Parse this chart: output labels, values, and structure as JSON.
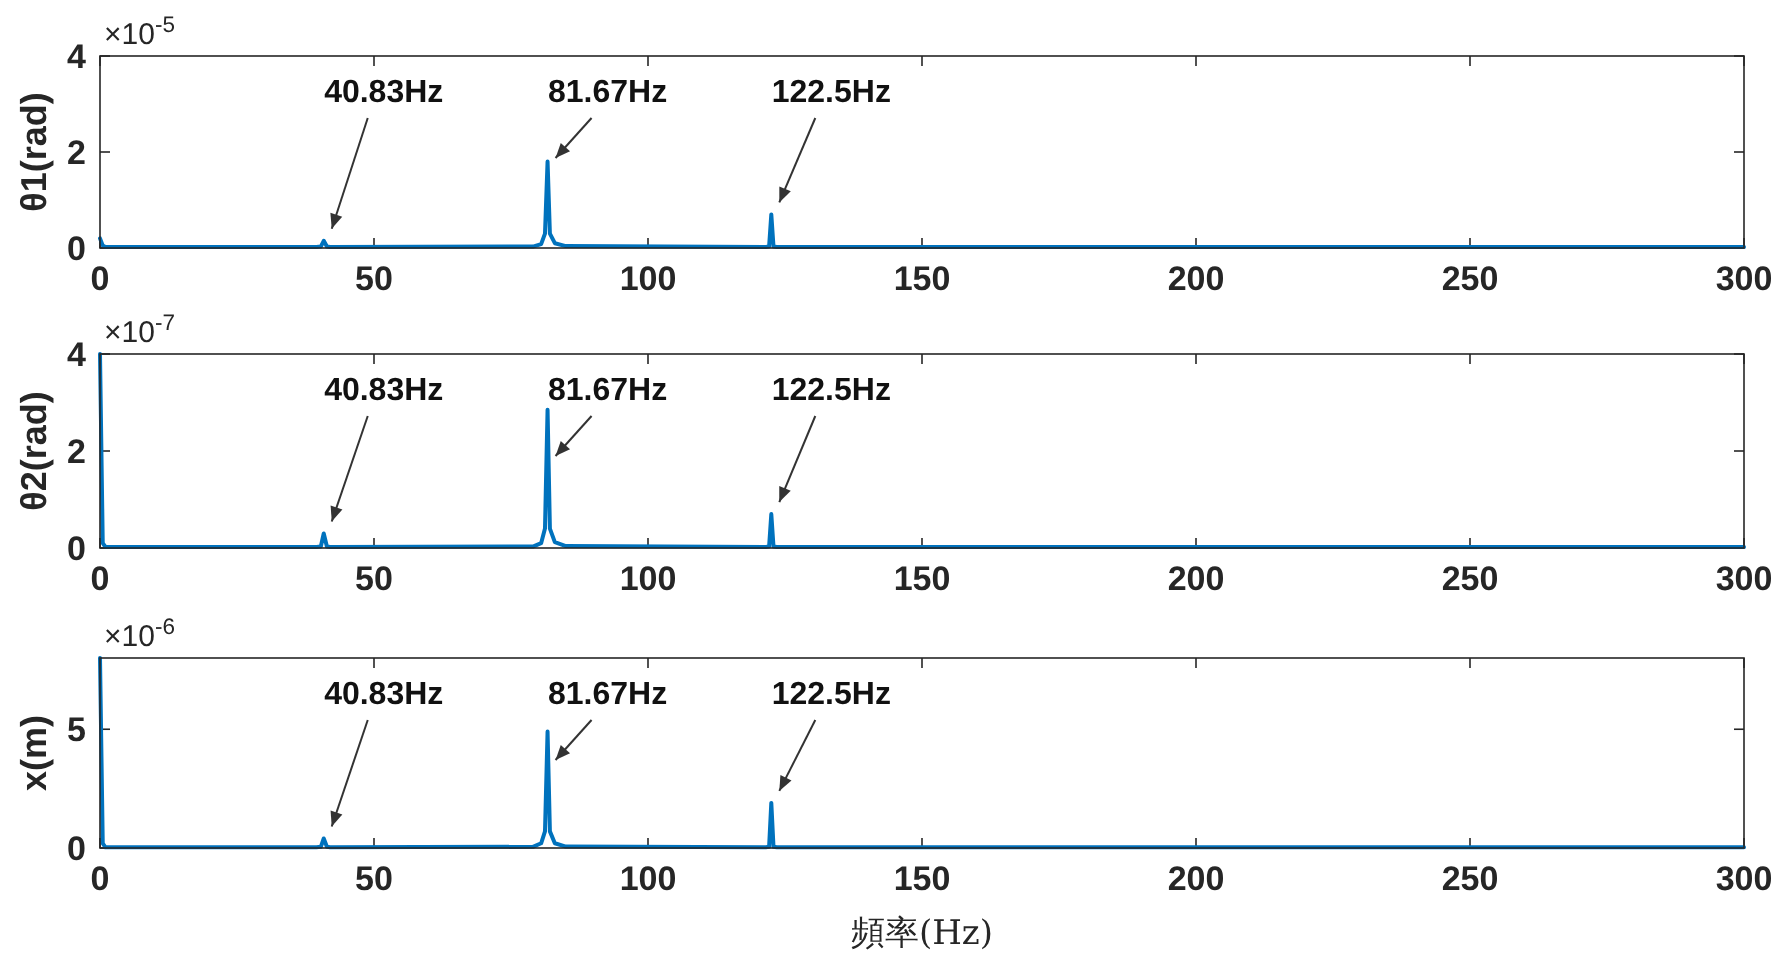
{
  "chart_data": [
    {
      "type": "line",
      "ylabel": "θ1(rad)",
      "xlim": [
        0,
        300
      ],
      "xticks": [
        0,
        50,
        100,
        150,
        200,
        250,
        300
      ],
      "ylim": [
        0,
        4
      ],
      "yticks": [
        0,
        2,
        4
      ],
      "x": [
        0,
        0.5,
        1,
        39.5,
        40.3,
        40.83,
        41.4,
        42,
        79,
        80.5,
        81.2,
        81.67,
        82.1,
        83,
        85,
        121.5,
        122.1,
        122.5,
        122.9,
        123.5,
        300
      ],
      "series": [
        {
          "color": "#0072bd",
          "values": [
            0.2,
            0.05,
            0.02,
            0.02,
            0.03,
            0.15,
            0.03,
            0.02,
            0.03,
            0.08,
            0.3,
            1.8,
            0.3,
            0.1,
            0.04,
            0.02,
            0.03,
            0.7,
            0.03,
            0.02,
            0.02
          ]
        }
      ],
      "annotations": [
        "×10$^{-5}$",
        {
          "text": "40.83Hz",
          "x": 40.83,
          "y": 0.15
        },
        {
          "text": "81.67Hz",
          "x": 81.67,
          "y": 1.8
        },
        {
          "text": "122.5Hz",
          "x": 122.5,
          "y": 0.7
        }
      ]
    },
    {
      "type": "line",
      "ylabel": "θ2(rad)",
      "xlim": [
        0,
        300
      ],
      "xticks": [
        0,
        50,
        100,
        150,
        200,
        250,
        300
      ],
      "ylim": [
        0,
        4
      ],
      "yticks": [
        0,
        2,
        4
      ],
      "x": [
        0,
        0.5,
        1,
        39.5,
        40.3,
        40.83,
        41.4,
        42,
        79,
        80.5,
        81.2,
        81.67,
        82.1,
        83,
        85,
        121.5,
        122.1,
        122.5,
        122.9,
        123.5,
        300
      ],
      "series": [
        {
          "color": "#0072bd",
          "values": [
            4,
            0.1,
            0.02,
            0.02,
            0.03,
            0.3,
            0.03,
            0.02,
            0.03,
            0.1,
            0.4,
            2.85,
            0.4,
            0.12,
            0.04,
            0.02,
            0.03,
            0.7,
            0.03,
            0.02,
            0.02
          ]
        }
      ],
      "annotations": [
        "×10$^{-7}$",
        {
          "text": "40.83Hz",
          "x": 40.83,
          "y": 0.3
        },
        {
          "text": "81.67Hz",
          "x": 81.67,
          "y": 2.85
        },
        {
          "text": "122.5Hz",
          "x": 122.5,
          "y": 0.7
        }
      ]
    },
    {
      "type": "line",
      "ylabel": "x(m)",
      "xlabel": "頻率(Hz)",
      "xlim": [
        0,
        300
      ],
      "xticks": [
        0,
        50,
        100,
        150,
        200,
        250,
        300
      ],
      "ylim": [
        0,
        8
      ],
      "yticks": [
        0,
        5
      ],
      "x": [
        0,
        0.5,
        1,
        39.5,
        40.3,
        40.83,
        41.4,
        42,
        79,
        80.5,
        81.2,
        81.67,
        82.1,
        83,
        85,
        121.5,
        122.1,
        122.5,
        122.9,
        123.5,
        300
      ],
      "series": [
        {
          "color": "#0072bd",
          "values": [
            8,
            0.2,
            0.03,
            0.03,
            0.05,
            0.4,
            0.05,
            0.03,
            0.05,
            0.2,
            0.7,
            4.9,
            0.7,
            0.2,
            0.06,
            0.03,
            0.05,
            1.9,
            0.05,
            0.03,
            0.03
          ]
        }
      ],
      "annotations": [
        "×10$^{-6}$",
        {
          "text": "40.83Hz",
          "x": 40.83,
          "y": 0.4
        },
        {
          "text": "81.67Hz",
          "x": 81.67,
          "y": 4.9
        },
        {
          "text": "122.5Hz",
          "x": 122.5,
          "y": 1.9
        }
      ]
    }
  ]
}
